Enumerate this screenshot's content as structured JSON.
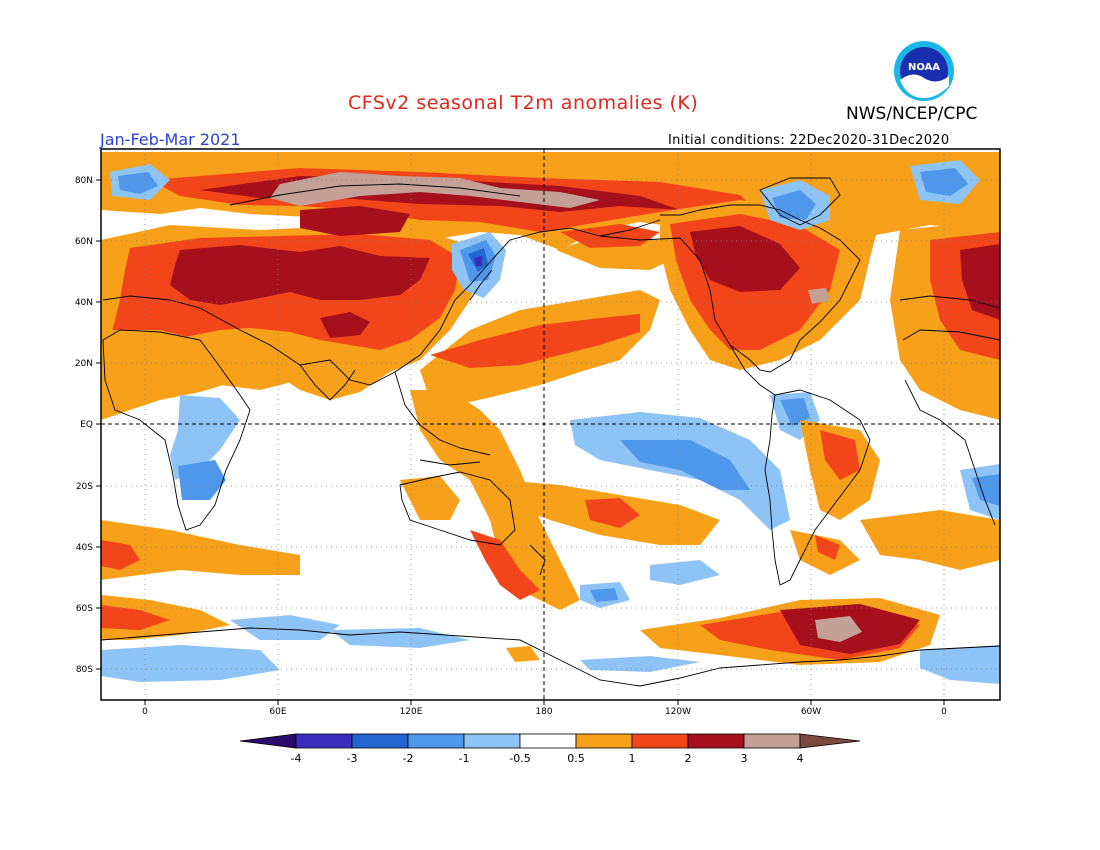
{
  "header": {
    "title": "CFSv2 seasonal T2m anomalies (K)",
    "organization": "NWS/NCEP/CPC",
    "period": "Jan-Feb-Mar 2021",
    "initial_conditions": "Initial conditions: 22Dec2020-31Dec2020",
    "logo_text": "NOAA"
  },
  "map": {
    "lat_labels": [
      "80N",
      "60N",
      "40N",
      "20N",
      "EQ",
      "20S",
      "40S",
      "60S",
      "80S"
    ],
    "lon_labels": [
      "0",
      "60E",
      "120E",
      "180",
      "120W",
      "60W",
      "0"
    ]
  },
  "colorbar": {
    "ticks": [
      "-4",
      "-3",
      "-2",
      "-1",
      "-0.5",
      "0.5",
      "1",
      "2",
      "3",
      "4"
    ],
    "colors": {
      "below_-4": "#2b0a6e",
      "-4_-3": "#3c2dbf",
      "-3_-2": "#2366d0",
      "-2_-1": "#4f97ea",
      "-1_-0.5": "#8ec3f5",
      "-0.5_0.5": "#ffffff",
      "0.5_1": "#f7a11a",
      "1_2": "#f2461a",
      "2_3": "#a5101c",
      "3_4": "#c4a096",
      "above_4": "#7a4a3e"
    }
  }
}
